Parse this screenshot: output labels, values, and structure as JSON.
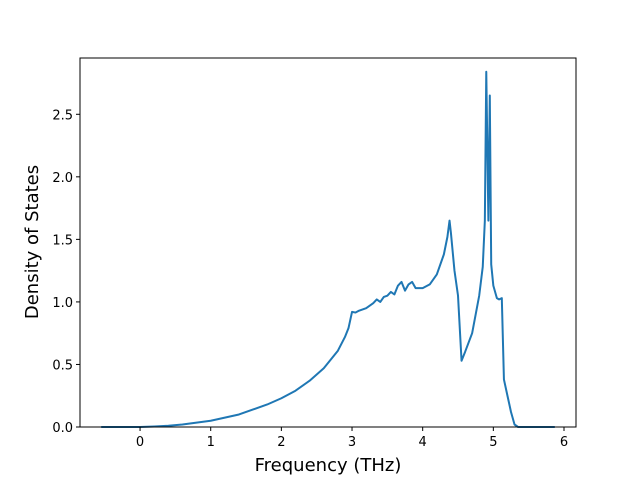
{
  "chart_data": {
    "type": "line",
    "xlabel": "Frequency (THz)",
    "ylabel": "Density of States",
    "xlim": [
      -0.85,
      6.17
    ],
    "ylim": [
      0,
      2.95
    ],
    "xticks": [
      0,
      1,
      2,
      3,
      4,
      5,
      6
    ],
    "yticks": [
      0.0,
      0.5,
      1.0,
      1.5,
      2.0,
      2.5
    ],
    "xtick_labels": [
      "0",
      "1",
      "2",
      "3",
      "4",
      "5",
      "6"
    ],
    "ytick_labels": [
      "0.0",
      "0.5",
      "1.0",
      "1.5",
      "2.0",
      "2.5"
    ],
    "grid": false,
    "line_color": "#1f77b4",
    "series": [
      {
        "x": [
          -0.55,
          -0.3,
          0.0,
          0.2,
          0.4,
          0.6,
          0.8,
          1.0,
          1.2,
          1.4,
          1.6,
          1.8,
          2.0,
          2.2,
          2.4,
          2.6,
          2.7,
          2.8,
          2.9,
          2.95,
          3.0,
          3.05,
          3.1,
          3.15,
          3.2,
          3.25,
          3.3,
          3.35,
          3.4,
          3.45,
          3.5,
          3.55,
          3.6,
          3.65,
          3.7,
          3.75,
          3.8,
          3.85,
          3.9,
          4.0,
          4.1,
          4.2,
          4.3,
          4.35,
          4.38,
          4.4,
          4.45,
          4.5,
          4.55,
          4.6,
          4.7,
          4.8,
          4.85,
          4.88,
          4.9,
          4.93,
          4.95,
          4.97,
          5.0,
          5.05,
          5.08,
          5.12,
          5.15,
          5.2,
          5.25,
          5.3,
          5.35,
          5.6,
          5.87
        ],
        "y": [
          0.0,
          0.0,
          0.0,
          0.004,
          0.01,
          0.02,
          0.035,
          0.05,
          0.075,
          0.1,
          0.14,
          0.18,
          0.23,
          0.29,
          0.37,
          0.47,
          0.54,
          0.61,
          0.72,
          0.79,
          0.92,
          0.915,
          0.93,
          0.94,
          0.95,
          0.97,
          0.99,
          1.02,
          1.0,
          1.04,
          1.05,
          1.08,
          1.06,
          1.13,
          1.16,
          1.09,
          1.14,
          1.16,
          1.11,
          1.11,
          1.14,
          1.22,
          1.38,
          1.52,
          1.65,
          1.55,
          1.25,
          1.05,
          0.53,
          0.6,
          0.75,
          1.05,
          1.28,
          1.65,
          2.84,
          1.65,
          2.65,
          1.3,
          1.13,
          1.03,
          1.02,
          1.03,
          0.38,
          0.25,
          0.12,
          0.02,
          0.0,
          0.0,
          0.0
        ]
      }
    ]
  }
}
